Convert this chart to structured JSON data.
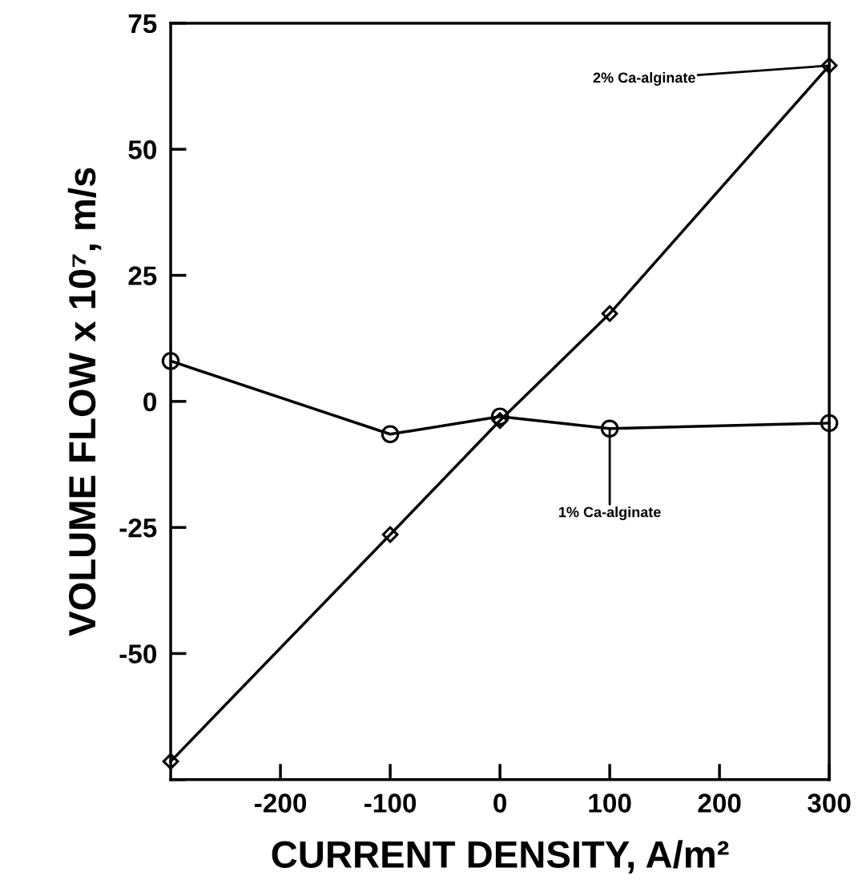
{
  "chart_data": {
    "type": "line",
    "xlabel": "CURRENT DENSITY, A/m²",
    "ylabel": "VOLUME FLOW x 10⁷, m/s",
    "x": [
      -300,
      -100,
      0,
      100,
      300
    ],
    "series": [
      {
        "color": "#000000",
        "marker": "circle",
        "values": [
          8,
          -6.5,
          -3,
          -5.4,
          -4.3
        ]
      },
      {
        "color": "#000000",
        "marker": "diamond",
        "values": [
          -71.4,
          -26.4,
          -3.8,
          17.4,
          66.6
        ]
      }
    ],
    "annotations": [
      {
        "text": "2% Ca-alginate",
        "x": 300,
        "y": 66.6
      },
      {
        "text": "1% Ca-alginate",
        "x": 100,
        "y": -5.4
      }
    ],
    "xlim": [
      -300,
      300
    ],
    "xticks": [
      -200,
      -100,
      0,
      100,
      200,
      300
    ],
    "ylim": [
      -75,
      75
    ],
    "yticks": [
      {
        "value": -75,
        "label": null
      },
      -50,
      -25,
      0,
      25,
      50,
      75
    ],
    "grid": false,
    "legend": false,
    "line_style": "solid"
  }
}
